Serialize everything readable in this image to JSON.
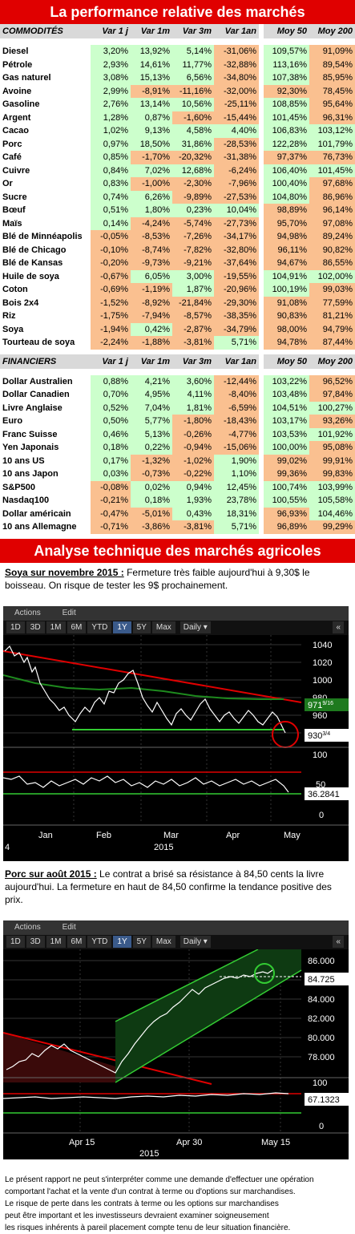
{
  "title": "La performance relative des marchés",
  "commodities": {
    "header": [
      "COMMODITÉS",
      "Var 1 j",
      "Var 1m",
      "Var 3m",
      "Var 1an",
      "Moy 50",
      "Moy 200"
    ],
    "rows": [
      [
        "Diesel",
        "3,20%",
        "13,92%",
        "5,14%",
        "-31,06%",
        "109,57%",
        "91,09%"
      ],
      [
        "Pétrole",
        "2,93%",
        "14,61%",
        "11,77%",
        "-32,88%",
        "113,16%",
        "89,54%"
      ],
      [
        "Gas naturel",
        "3,08%",
        "15,13%",
        "6,56%",
        "-34,80%",
        "107,38%",
        "85,95%"
      ],
      [
        "Avoine",
        "2,99%",
        "-8,91%",
        "-11,16%",
        "-32,00%",
        "92,30%",
        "78,45%"
      ],
      [
        "Gasoline",
        "2,76%",
        "13,14%",
        "10,56%",
        "-25,11%",
        "108,85%",
        "95,64%"
      ],
      [
        "Argent",
        "1,28%",
        "0,87%",
        "-1,60%",
        "-15,44%",
        "101,45%",
        "96,31%"
      ],
      [
        "Cacao",
        "1,02%",
        "9,13%",
        "4,58%",
        "4,40%",
        "106,83%",
        "103,12%"
      ],
      [
        "Porc",
        "0,97%",
        "18,50%",
        "31,86%",
        "-28,53%",
        "122,28%",
        "101,79%"
      ],
      [
        "Café",
        "0,85%",
        "-1,70%",
        "-20,32%",
        "-31,38%",
        "97,37%",
        "76,73%"
      ],
      [
        "Cuivre",
        "0,84%",
        "7,02%",
        "12,68%",
        "-6,24%",
        "106,40%",
        "101,45%"
      ],
      [
        "Or",
        "0,83%",
        "-1,00%",
        "-2,30%",
        "-7,96%",
        "100,40%",
        "97,68%"
      ],
      [
        "Sucre",
        "0,74%",
        "6,26%",
        "-9,89%",
        "-27,53%",
        "104,80%",
        "86,96%"
      ],
      [
        "Bœuf",
        "0,51%",
        "1,80%",
        "0,23%",
        "10,04%",
        "98,89%",
        "96,14%"
      ],
      [
        "Maïs",
        "0,14%",
        "-4,24%",
        "-5,74%",
        "-27,73%",
        "95,70%",
        "97,08%"
      ],
      [
        "Blé de Minnéapolis",
        "-0,05%",
        "-8,53%",
        "-7,26%",
        "-34,17%",
        "94,98%",
        "89,24%"
      ],
      [
        "Blé de Chicago",
        "-0,10%",
        "-8,74%",
        "-7,82%",
        "-32,80%",
        "96,11%",
        "90,82%"
      ],
      [
        "Blé de Kansas",
        "-0,20%",
        "-9,73%",
        "-9,21%",
        "-37,64%",
        "94,67%",
        "86,55%"
      ],
      [
        "Huile de soya",
        "-0,67%",
        "6,05%",
        "3,00%",
        "-19,55%",
        "104,91%",
        "102,00%"
      ],
      [
        "Coton",
        "-0,69%",
        "-1,19%",
        "1,87%",
        "-20,96%",
        "100,19%",
        "99,03%"
      ],
      [
        "Bois 2x4",
        "-1,52%",
        "-8,92%",
        "-21,84%",
        "-29,30%",
        "91,08%",
        "77,59%"
      ],
      [
        "Riz",
        "-1,75%",
        "-7,94%",
        "-8,57%",
        "-38,35%",
        "90,83%",
        "81,21%"
      ],
      [
        "Soya",
        "-1,94%",
        "0,42%",
        "-2,87%",
        "-34,79%",
        "98,00%",
        "94,79%"
      ],
      [
        "Tourteau de soya",
        "-2,24%",
        "-1,88%",
        "-3,81%",
        "5,71%",
        "94,78%",
        "87,44%"
      ]
    ]
  },
  "financials": {
    "header": [
      "FINANCIERS",
      "Var 1 j",
      "Var 1m",
      "Var 3m",
      "Var 1an",
      "Moy 50",
      "Moy 200"
    ],
    "rows": [
      [
        "Dollar Australien",
        "0,88%",
        "4,21%",
        "3,60%",
        "-12,44%",
        "103,22%",
        "96,52%"
      ],
      [
        "Dollar Canadien",
        "0,70%",
        "4,95%",
        "4,11%",
        "-8,40%",
        "103,48%",
        "97,84%"
      ],
      [
        "Livre Anglaise",
        "0,52%",
        "7,04%",
        "1,81%",
        "-6,59%",
        "104,51%",
        "100,27%"
      ],
      [
        "Euro",
        "0,50%",
        "5,77%",
        "-1,80%",
        "-18,43%",
        "103,17%",
        "93,26%"
      ],
      [
        "Franc Suisse",
        "0,46%",
        "5,13%",
        "-0,26%",
        "-4,77%",
        "103,53%",
        "101,92%"
      ],
      [
        "Yen Japonais",
        "0,18%",
        "0,22%",
        "-0,94%",
        "-15,06%",
        "100,00%",
        "95,08%"
      ],
      [
        "10 ans US",
        "0,17%",
        "-1,32%",
        "-1,02%",
        "1,90%",
        "99,02%",
        "99,91%"
      ],
      [
        "10 ans Japon",
        "0,03%",
        "-0,73%",
        "-0,22%",
        "1,10%",
        "99,36%",
        "99,83%"
      ],
      [
        "S&P500",
        "-0,08%",
        "0,02%",
        "0,94%",
        "12,45%",
        "100,74%",
        "103,99%"
      ],
      [
        "Nasdaq100",
        "-0,21%",
        "0,18%",
        "1,93%",
        "23,78%",
        "100,55%",
        "105,58%"
      ],
      [
        "Dollar américain",
        "-0,47%",
        "-5,01%",
        "0,43%",
        "18,31%",
        "96,93%",
        "104,46%"
      ],
      [
        "10 ans Allemagne",
        "-0,71%",
        "-3,86%",
        "-3,81%",
        "5,71%",
        "96,89%",
        "99,29%"
      ]
    ]
  },
  "analysis_title": "Analyse technique des marchés agricoles",
  "soya": {
    "heading": "Soya sur novembre 2015 :",
    "text": " Fermeture très faible aujourd'hui à 9,30$ le boisseau. On risque de tester les 9$ prochainement."
  },
  "porc": {
    "heading": "Porc sur août 2015 :",
    "text": " Le contrat a brisé sa résistance à 84,50 cents la livre aujourd'hui. La fermeture en haut de 84,50 confirme la tendance positive des prix."
  },
  "toolbar": {
    "actions": "Actions",
    "edit": "Edit",
    "periods": [
      "1D",
      "3D",
      "1M",
      "6M",
      "YTD",
      "1Y",
      "5Y",
      "Max"
    ],
    "active": "1Y",
    "interval": "Daily",
    "nav": "«"
  },
  "chart1": {
    "y_ticks": [
      "1040",
      "1020",
      "1000",
      "980",
      "960",
      "940"
    ],
    "price_label_main": "971",
    "price_label_frac": "9/16",
    "last_label_main": "930",
    "last_label_frac": "3/4",
    "osc_ticks": [
      "100",
      "50",
      "0"
    ],
    "osc_label": "36.2841",
    "x_labels": [
      "Jan",
      "Feb",
      "Mar",
      "Apr",
      "May"
    ],
    "year": "2015",
    "left_mark": "4"
  },
  "chart2": {
    "y_ticks": [
      "86.000",
      "84.000",
      "82.000",
      "80.000",
      "78.000"
    ],
    "price_label": "84.725",
    "osc_ticks": [
      "100",
      "50",
      "0"
    ],
    "osc_label": "67.1323",
    "x_labels": [
      "Apr 15",
      "Apr 30",
      "May 15"
    ],
    "year": "2015"
  },
  "disclaimer": [
    "Le présent rapport ne peut s'interpréter comme une demande d'effectuer une opération",
    "comportant l'achat et la vente d'un contrat à terme ou d'options sur marchandises.",
    "Le risque de perte dans les contrats à terme ou les options sur marchandises",
    "peut être important et les investisseurs devraient examiner soigneusement",
    "les risques inhérents à pareil placement compte tenu de leur situation financière."
  ],
  "colors": {
    "red": "#e00000",
    "green": "#ccffcc",
    "orange": "#fac090",
    "header": "#d9d9d9"
  }
}
